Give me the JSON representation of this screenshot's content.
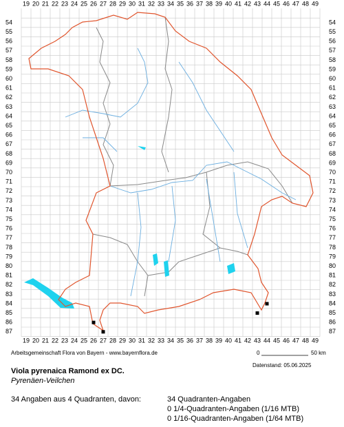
{
  "map": {
    "columns": [
      19,
      20,
      21,
      22,
      23,
      24,
      25,
      26,
      27,
      28,
      29,
      30,
      31,
      32,
      33,
      34,
      35,
      36,
      37,
      38,
      39,
      40,
      41,
      42,
      43,
      44,
      45,
      46,
      47,
      48,
      49
    ],
    "rows": [
      54,
      55,
      56,
      57,
      58,
      59,
      60,
      61,
      62,
      63,
      64,
      65,
      66,
      67,
      68,
      69,
      70,
      71,
      72,
      73,
      74,
      75,
      76,
      77,
      78,
      79,
      80,
      81,
      82,
      83,
      84,
      85,
      86,
      87
    ],
    "points": [
      [
        26,
        86
      ],
      [
        27,
        87
      ],
      [
        43,
        85
      ],
      [
        44,
        84
      ]
    ]
  },
  "footer": {
    "credit": "Arbeitsgemeinschaft Flora von Bayern - www.bayernflora.de",
    "scale_start": "0",
    "scale_end": "50 km",
    "date": "Datenstand: 05.06.2025",
    "title": "Viola pyrenaica Ramond ex DC.",
    "subtitle": "Pyrenäen-Veilchen",
    "summary": "34 Angaben aus 4 Quadranten, davon:",
    "counts": [
      "34 Quadranten-Angaben",
      "0 1/4-Quadranten-Angaben (1/16 MTB)",
      "0 1/16-Quadranten-Angaben (1/64 MTB)"
    ]
  }
}
